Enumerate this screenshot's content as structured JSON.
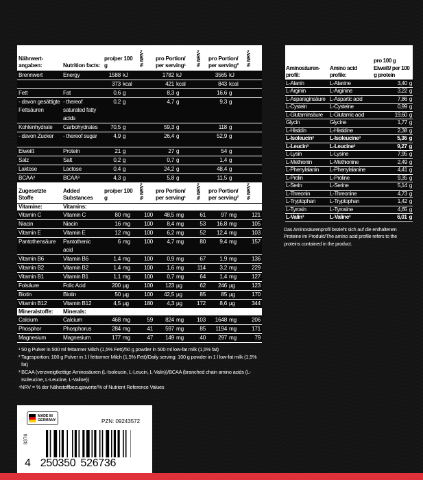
{
  "nutrition": {
    "header": {
      "de": "Nährwert-angaben:",
      "en": "Nutrition facts:",
      "per100": "pro/per 100 g",
      "nrv": "% NRV⁴",
      "serving1": "pro Portion/ per serving¹",
      "serving2": "pro Portion/ per serving²"
    },
    "rows": [
      {
        "de": "Brennwert",
        "en": "Energy",
        "v": [
          [
            "1588",
            "kJ"
          ],
          [
            "1782",
            "kJ"
          ],
          [
            "3565",
            "kJ"
          ]
        ],
        "nrv": [
          "",
          "",
          ""
        ]
      },
      {
        "de": "",
        "en": "",
        "v": [
          [
            "373",
            "kcal"
          ],
          [
            "421",
            "kcal"
          ],
          [
            "843",
            "kcal"
          ]
        ],
        "nrv": [
          "",
          "",
          ""
        ]
      },
      {
        "de": "Fett",
        "en": "Fat",
        "v": [
          [
            "0,6",
            "g"
          ],
          [
            "8,3",
            "g"
          ],
          [
            "16,6",
            "g"
          ]
        ],
        "nrv": [
          "",
          "",
          ""
        ]
      },
      {
        "de": "- davon gesättigte Fettsäuren",
        "en": "- thereof saturated fatty acids",
        "v": [
          [
            "0,2",
            "g"
          ],
          [
            "4,7",
            "g"
          ],
          [
            "9,3",
            "g"
          ]
        ],
        "nrv": [
          "",
          "",
          ""
        ]
      },
      {
        "de": "Kohlenhydrate",
        "en": "Carbohydrates",
        "v": [
          [
            "70,5",
            "g"
          ],
          [
            "59,3",
            "g"
          ],
          [
            "118",
            "g"
          ]
        ],
        "nrv": [
          "",
          "",
          ""
        ]
      },
      {
        "de": "- davon Zucker",
        "en": "- thereof sugar",
        "v": [
          [
            "4,9",
            "g"
          ],
          [
            "26,4",
            "g"
          ],
          [
            "52,9",
            "g"
          ]
        ],
        "nrv": [
          "",
          "",
          ""
        ],
        "tall": true
      },
      {
        "de": "Eiweiß",
        "en": "Protein",
        "v": [
          [
            "21",
            "g"
          ],
          [
            "27",
            "g"
          ],
          [
            "54",
            "g"
          ]
        ],
        "nrv": [
          "",
          "",
          ""
        ]
      },
      {
        "de": "Salz",
        "en": "Salt",
        "v": [
          [
            "0,2",
            "g"
          ],
          [
            "0,7",
            "g"
          ],
          [
            "1,4",
            "g"
          ]
        ],
        "nrv": [
          "",
          "",
          ""
        ]
      },
      {
        "de": "Laktose",
        "en": "Lactose",
        "v": [
          [
            "0,4",
            "g"
          ],
          [
            "24,2",
            "g"
          ],
          [
            "48,4",
            "g"
          ]
        ],
        "nrv": [
          "",
          "",
          ""
        ]
      },
      {
        "de": "BCAA³",
        "en": "BCAA³",
        "v": [
          [
            "4,3",
            "g"
          ],
          [
            "5,8",
            "g"
          ],
          [
            "11,5",
            "g"
          ]
        ],
        "nrv": [
          "",
          "",
          ""
        ]
      }
    ],
    "added_header": {
      "de": "Zugesetzte Stoffe",
      "en": "Added Substances",
      "per100": "pro/per 100 g",
      "nrv": "% NRV⁴",
      "serving1": "pro Portion/ per serving¹",
      "serving2": "pro Portion/ per serving²"
    },
    "vitamins_label": {
      "de": "Vitamine:",
      "en": "Vitamins:"
    },
    "vitamins": [
      {
        "de": "Vitamin C",
        "en": "Vitamin C",
        "v": [
          [
            "80",
            "mg"
          ],
          [
            "48,5",
            "mg"
          ],
          [
            "97",
            "mg"
          ]
        ],
        "nrv": [
          "100",
          "61",
          "121"
        ]
      },
      {
        "de": "Niacin",
        "en": "Niacin",
        "v": [
          [
            "16",
            "mg"
          ],
          [
            "8,4",
            "mg"
          ],
          [
            "16,8",
            "mg"
          ]
        ],
        "nrv": [
          "100",
          "53",
          "105"
        ]
      },
      {
        "de": "Vitamin E",
        "en": "Vitamin E",
        "v": [
          [
            "12",
            "mg"
          ],
          [
            "6,2",
            "mg"
          ],
          [
            "12,4",
            "mg"
          ]
        ],
        "nrv": [
          "100",
          "52",
          "103"
        ]
      },
      {
        "de": "Pantothensäure",
        "en": "Pantothenic acid",
        "v": [
          [
            "6",
            "mg"
          ],
          [
            "4,7",
            "mg"
          ],
          [
            "9,4",
            "mg"
          ]
        ],
        "nrv": [
          "100",
          "80",
          "157"
        ]
      },
      {
        "de": "Vitamin B6",
        "en": "Vitamin B6",
        "v": [
          [
            "1,4",
            "mg"
          ],
          [
            "0,9",
            "mg"
          ],
          [
            "1,9",
            "mg"
          ]
        ],
        "nrv": [
          "100",
          "67",
          "136"
        ]
      },
      {
        "de": "Vitamin B2",
        "en": "Vitamin B2",
        "v": [
          [
            "1,4",
            "mg"
          ],
          [
            "1,6",
            "mg"
          ],
          [
            "3,2",
            "mg"
          ]
        ],
        "nrv": [
          "100",
          "114",
          "229"
        ]
      },
      {
        "de": "Vitamin B1",
        "en": "Vitamin B1",
        "v": [
          [
            "1,1",
            "mg"
          ],
          [
            "0,7",
            "mg"
          ],
          [
            "1,4",
            "mg"
          ]
        ],
        "nrv": [
          "100",
          "64",
          "127"
        ]
      },
      {
        "de": "Folsäure",
        "en": "Folic Acid",
        "v": [
          [
            "200",
            "µg"
          ],
          [
            "123",
            "µg"
          ],
          [
            "246",
            "µg"
          ]
        ],
        "nrv": [
          "100",
          "62",
          "123"
        ]
      },
      {
        "de": "Biotin",
        "en": "Biotin",
        "v": [
          [
            "50",
            "µg"
          ],
          [
            "42,5",
            "µg"
          ],
          [
            "85",
            "µg"
          ]
        ],
        "nrv": [
          "100",
          "85",
          "170"
        ]
      },
      {
        "de": "Vitamin B12",
        "en": "Vitamin B12",
        "v": [
          [
            "4,5",
            "µg"
          ],
          [
            "4,3",
            "µg"
          ],
          [
            "8,6",
            "µg"
          ]
        ],
        "nrv": [
          "180",
          "172",
          "344"
        ]
      }
    ],
    "minerals_label": {
      "de": "Mineralstoffe:",
      "en": "Minerals:"
    },
    "minerals": [
      {
        "de": "Calcium",
        "en": "Calcium",
        "v": [
          [
            "468",
            "mg"
          ],
          [
            "824",
            "mg"
          ],
          [
            "1648",
            "mg"
          ]
        ],
        "nrv": [
          "59",
          "103",
          "206"
        ]
      },
      {
        "de": "Phosphor",
        "en": "Phosphorus",
        "v": [
          [
            "284",
            "mg"
          ],
          [
            "597",
            "mg"
          ],
          [
            "1194",
            "mg"
          ]
        ],
        "nrv": [
          "41",
          "85",
          "171"
        ]
      },
      {
        "de": "Magnesium",
        "en": "Magnesium",
        "v": [
          [
            "177",
            "mg"
          ],
          [
            "149",
            "mg"
          ],
          [
            "297",
            "mg"
          ]
        ],
        "nrv": [
          "47",
          "40",
          "79"
        ]
      }
    ]
  },
  "footnotes": [
    "¹ 50 g Pulver in 500 ml fettarmer Milch (1,5% Fett)/50 g powder in 500 ml low-fat milk (1,5% fat)",
    "² Tagesportion: 100 g Pulver in 1 l fettarmer Milch (1,5% Fett)/Daily serving: 100 g powder in 1 l low-fat milk (1,5% fat)",
    "³ BCAA (verzweigtkettige Aminosäuren (L-Isoleucin, L-Leucin, L-Valin))/BCAA (branched chain amino acids (L-Isoleucine, L-Leucine, L-Valine))",
    "⁴NRV = % der Nährstoffbezugswerte/% of Nutrient Reference Values"
  ],
  "amino": {
    "header": {
      "de": "Aminosäuren-profil:",
      "en": "Amino acid profile:",
      "val": "pro 100 g Eiweiß/ per 100 g protein"
    },
    "rows": [
      {
        "de": "L-Alanin",
        "en": "L-Alanine",
        "v": "3,40",
        "u": "g"
      },
      {
        "de": "L-Arginin",
        "en": "L-Arginine",
        "v": "3,22",
        "u": "g"
      },
      {
        "de": "L-Asparaginsäure",
        "en": "L-Aspartic acid",
        "v": "7,86",
        "u": "g"
      },
      {
        "de": "L-Cystein",
        "en": "L-Cysteine",
        "v": "0,99",
        "u": "g"
      },
      {
        "de": "L-Glutaminsäure",
        "en": "L-Glutamic acid",
        "v": "19,60",
        "u": "g"
      },
      {
        "de": "Glycin",
        "en": "Glycine",
        "v": "1,77",
        "u": "g"
      },
      {
        "de": "L-Histidin",
        "en": "L-Histidine",
        "v": "2,38",
        "u": "g"
      },
      {
        "de": "L-Isoleucin³",
        "en": "L-Isoleucine³",
        "v": "5,36",
        "u": "g",
        "bold": true
      },
      {
        "de": "L-Leucin³",
        "en": "L-Leucine³",
        "v": "9,27",
        "u": "g",
        "bold": true
      },
      {
        "de": "L-Lysin",
        "en": "L-Lysine",
        "v": "7,95",
        "u": "g"
      },
      {
        "de": "L-Methionin",
        "en": "L-Methionine",
        "v": "2,49",
        "u": "g"
      },
      {
        "de": "L-Phenylalanin",
        "en": "L-Phenylalanine",
        "v": "4,41",
        "u": "g"
      },
      {
        "de": "L-Prolin",
        "en": "L-Proline",
        "v": "9,35",
        "u": "g"
      },
      {
        "de": "L-Serin",
        "en": "L-Serine",
        "v": "5,14",
        "u": "g"
      },
      {
        "de": "L-Threonin",
        "en": "L-Threonine",
        "v": "4,73",
        "u": "g"
      },
      {
        "de": "L-Tryptophan",
        "en": "L-Tryptophan",
        "v": "1,42",
        "u": "g"
      },
      {
        "de": "L-Tyrosin",
        "en": "L-Tyrosine",
        "v": "4,65",
        "u": "g"
      },
      {
        "de": "L-Valin³",
        "en": "L-Valine³",
        "v": "6,01",
        "u": "g",
        "bold": true
      }
    ],
    "note": "Das Aminosäurenprofil bezieht sich auf die enthaltenen Proteine im Produkt/The amino acid profile refers to the proteins contained in the product."
  },
  "label": {
    "made_in": "MADE IN GERMANY",
    "pzn": "PZN: 09243572",
    "code": "9376",
    "ean": [
      "4",
      "250350",
      "526736"
    ]
  },
  "colors": {
    "accent_red": "#e0313a",
    "background": "#141414"
  }
}
